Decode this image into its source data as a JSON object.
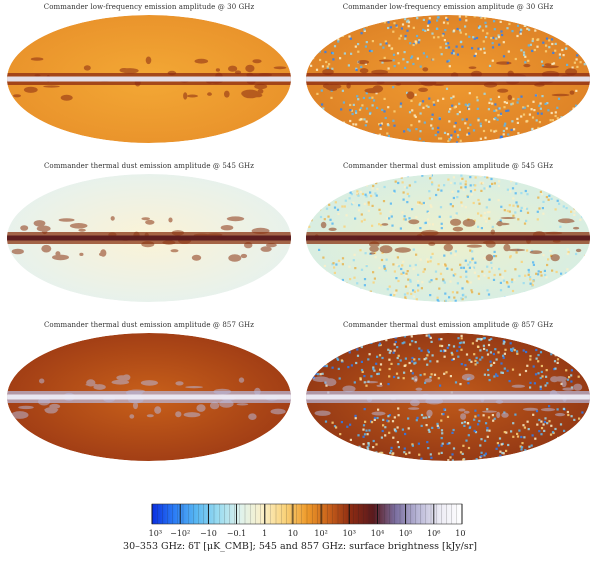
{
  "panels": [
    {
      "title": "Commander low-frequency emission amplitude @ 30 GHz",
      "style": "lowfreq"
    },
    {
      "title": "Commander low-frequency emission amplitude @ 30 GHz",
      "style": "lowfreq-noisy"
    },
    {
      "title": "Commander thermal dust emission amplitude @ 545 GHz",
      "style": "dust-faint"
    },
    {
      "title": "Commander thermal dust emission amplitude @ 545 GHz",
      "style": "dust-faint-noisy"
    },
    {
      "title": "Commander thermal dust emission amplitude @ 857 GHz",
      "style": "dust-strong"
    },
    {
      "title": "Commander thermal dust emission amplitude @ 857 GHz",
      "style": "dust-strong-noisy"
    }
  ],
  "chart_data": {
    "type": "heatmap",
    "projection": "Mollweide all-sky",
    "grid": false,
    "colorbar": {
      "ticks": [
        "−10³",
        "−10²",
        "−10",
        "−0.1",
        "1",
        "10",
        "10²",
        "10³",
        "10⁴",
        "10⁵",
        "10⁶",
        "10⁷"
      ],
      "colors": [
        "#0a2ee0",
        "#2b7cf5",
        "#58b7f2",
        "#9adcf0",
        "#dff2ec",
        "#fbf0c8",
        "#f9d27a",
        "#ee9a2a",
        "#c8601a",
        "#8b2a12",
        "#5a1a1e",
        "#7b6fa0",
        "#b8b6d6",
        "#ecebf4",
        "#ffffff"
      ],
      "label": "30–353 GHz: δT [μK_CMB]; 545 and 857 GHz: surface brightness [kJy/sr]"
    }
  }
}
